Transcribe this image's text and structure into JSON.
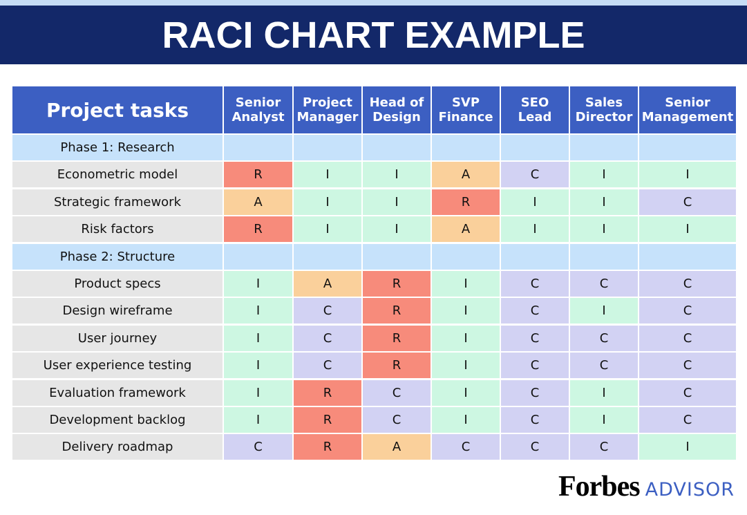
{
  "header": {
    "title": "RACI CHART EXAMPLE"
  },
  "table": {
    "columns": [
      [
        "Project tasks"
      ],
      [
        "Senior",
        "Analyst"
      ],
      [
        "Project",
        "Manager"
      ],
      [
        "Head of",
        "Design"
      ],
      [
        "SVP",
        "Finance"
      ],
      [
        "SEO",
        "Lead"
      ],
      [
        "Sales",
        "Director"
      ],
      [
        "Senior",
        "Management"
      ]
    ],
    "rows": [
      {
        "label": "Phase 1: Research"
      },
      {
        "label": "Econometric model",
        "cells": [
          "R",
          "I",
          "I",
          "A",
          "C",
          "I",
          "I"
        ]
      },
      {
        "label": "Strategic framework",
        "cells": [
          "A",
          "I",
          "I",
          "R",
          "I",
          "I",
          "C"
        ]
      },
      {
        "label": "Risk factors",
        "cells": [
          "R",
          "I",
          "I",
          "A",
          "I",
          "I",
          "I"
        ]
      },
      {
        "label": "Phase 2: Structure"
      },
      {
        "label": "Product specs",
        "cells": [
          "I",
          "A",
          "R",
          "I",
          "C",
          "C",
          "C"
        ]
      },
      {
        "label": "Design wireframe",
        "cells": [
          "I",
          "C",
          "R",
          "I",
          "C",
          "I",
          "C"
        ]
      },
      {
        "label": "User journey",
        "cells": [
          "I",
          "C",
          "R",
          "I",
          "C",
          "C",
          "C"
        ]
      },
      {
        "label": "User experience testing",
        "cells": [
          "I",
          "C",
          "R",
          "I",
          "C",
          "C",
          "C"
        ]
      },
      {
        "label": "Evaluation framework",
        "cells": [
          "I",
          "R",
          "C",
          "I",
          "C",
          "I",
          "C"
        ]
      },
      {
        "label": "Development backlog",
        "cells": [
          "I",
          "R",
          "C",
          "I",
          "C",
          "I",
          "C"
        ]
      },
      {
        "label": "Delivery roadmap",
        "cells": [
          "C",
          "R",
          "A",
          "C",
          "C",
          "C",
          "I"
        ]
      }
    ],
    "colors": {
      "R": "#f78b7b",
      "A": "#fad09b",
      "I": "#cdf7e2",
      "C": "#d2d2f3"
    }
  },
  "brand": {
    "name": "Forbes",
    "sub": "ADVISOR"
  }
}
